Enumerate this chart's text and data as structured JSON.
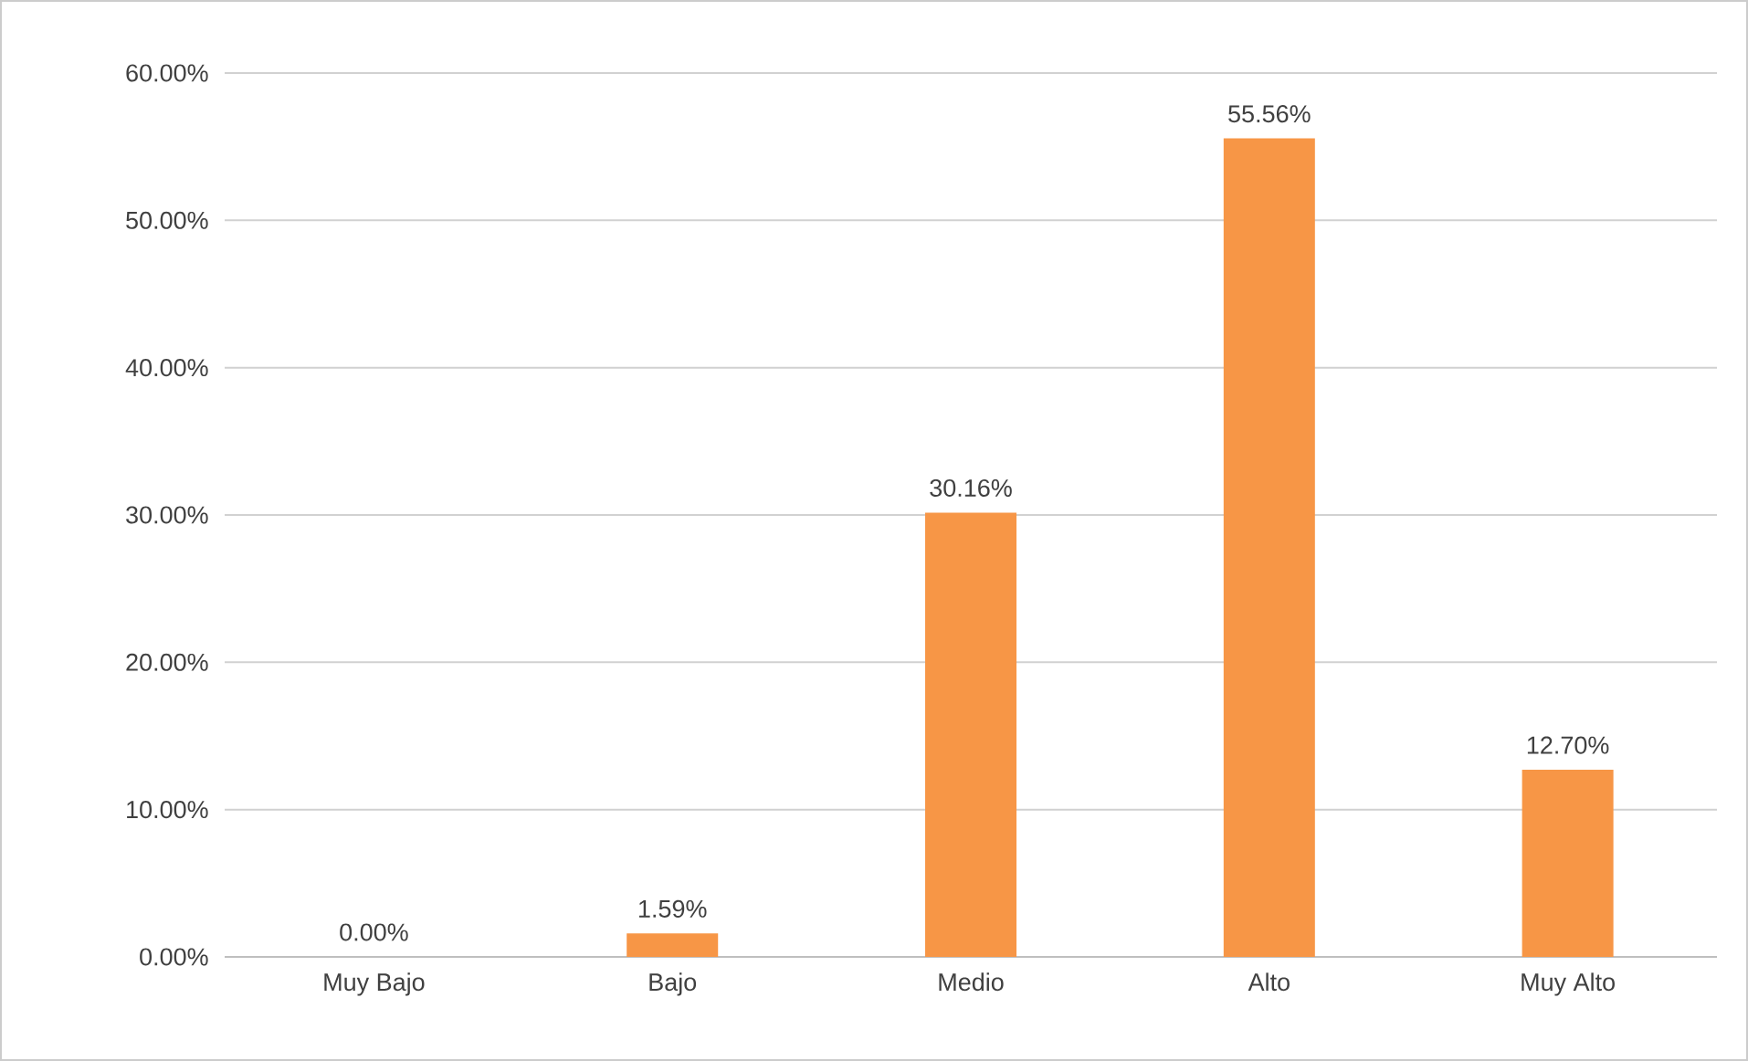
{
  "chart_data": {
    "type": "bar",
    "categories": [
      "Muy Bajo",
      "Bajo",
      "Medio",
      "Alto",
      "Muy Alto"
    ],
    "values": [
      0,
      1.59,
      30.16,
      55.56,
      12.7
    ],
    "value_labels": [
      "0.00%",
      "1.59%",
      "30.16%",
      "55.56%",
      "12.70%"
    ],
    "color": "#f79646",
    "ylim": [
      0,
      60
    ],
    "yticks": [
      {
        "value": 0,
        "label": "0.00%"
      },
      {
        "value": 10,
        "label": "10.00%"
      },
      {
        "value": 20,
        "label": "20.00%"
      },
      {
        "value": 30,
        "label": "30.00%"
      },
      {
        "value": 40,
        "label": "40.00%"
      },
      {
        "value": 50,
        "label": "50.00%"
      },
      {
        "value": 60,
        "label": "60.00%"
      }
    ],
    "grid": "y"
  }
}
